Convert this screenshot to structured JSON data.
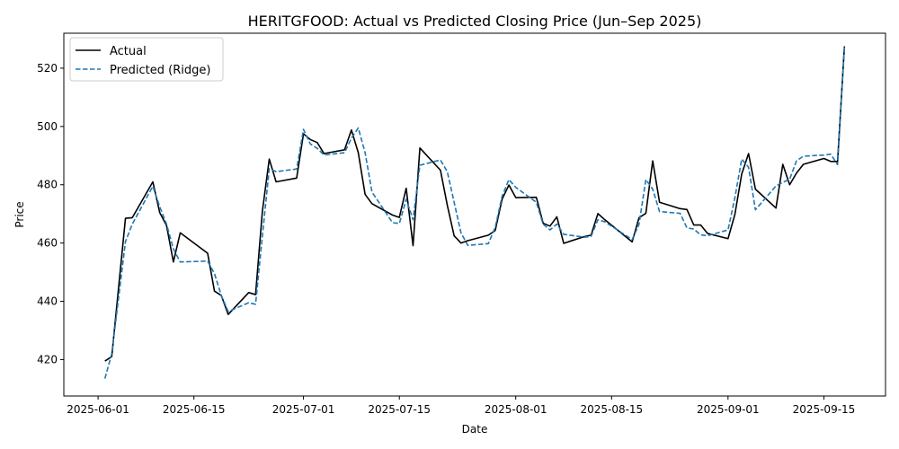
{
  "chart_data": {
    "type": "line",
    "title": "HERITGFOOD: Actual vs Predicted Closing Price (Jun–Sep 2025)",
    "xlabel": "Date",
    "ylabel": "Price",
    "xlim": [
      "2025-05-27",
      "2025-09-24"
    ],
    "ylim": [
      407.5,
      532
    ],
    "x_ticks": [
      "2025-06-01",
      "2025-06-15",
      "2025-07-01",
      "2025-07-15",
      "2025-08-01",
      "2025-08-15",
      "2025-09-01",
      "2025-09-15"
    ],
    "y_ticks": [
      420,
      440,
      460,
      480,
      500,
      520
    ],
    "grid": false,
    "legend_position": "top-left",
    "colors": {
      "actual": "#000000",
      "predicted": "#1f77b4"
    },
    "x": [
      "2025-06-02",
      "2025-06-03",
      "2025-06-05",
      "2025-06-06",
      "2025-06-09",
      "2025-06-10",
      "2025-06-11",
      "2025-06-12",
      "2025-06-13",
      "2025-06-17",
      "2025-06-18",
      "2025-06-19",
      "2025-06-20",
      "2025-06-23",
      "2025-06-24",
      "2025-06-25",
      "2025-06-26",
      "2025-06-27",
      "2025-06-30",
      "2025-07-01",
      "2025-07-02",
      "2025-07-03",
      "2025-07-04",
      "2025-07-07",
      "2025-07-08",
      "2025-07-09",
      "2025-07-10",
      "2025-07-11",
      "2025-07-14",
      "2025-07-15",
      "2025-07-16",
      "2025-07-17",
      "2025-07-18",
      "2025-07-21",
      "2025-07-22",
      "2025-07-23",
      "2025-07-24",
      "2025-07-25",
      "2025-07-28",
      "2025-07-29",
      "2025-07-30",
      "2025-07-31",
      "2025-08-01",
      "2025-08-04",
      "2025-08-05",
      "2025-08-06",
      "2025-08-07",
      "2025-08-08",
      "2025-08-11",
      "2025-08-12",
      "2025-08-13",
      "2025-08-14",
      "2025-08-18",
      "2025-08-19",
      "2025-08-20",
      "2025-08-21",
      "2025-08-22",
      "2025-08-25",
      "2025-08-26",
      "2025-08-27",
      "2025-08-28",
      "2025-08-29",
      "2025-09-01",
      "2025-09-02",
      "2025-09-03",
      "2025-09-04",
      "2025-09-05",
      "2025-09-08",
      "2025-09-09",
      "2025-09-10",
      "2025-09-11",
      "2025-09-12",
      "2025-09-15",
      "2025-09-16",
      "2025-09-17",
      "2025-09-18"
    ],
    "series": [
      {
        "name": "Actual",
        "style": "solid",
        "values": [
          419.5,
          421,
          468.5,
          468.7,
          481,
          470.5,
          466,
          453.5,
          463.5,
          456.5,
          443.5,
          442,
          435.5,
          443,
          442.3,
          471,
          488.8,
          481,
          482.3,
          497.5,
          495.5,
          494.5,
          490.7,
          492,
          498.8,
          491,
          476.7,
          473.5,
          469.6,
          468.8,
          478.8,
          459.1,
          492.6,
          485,
          473,
          462.5,
          460,
          460.8,
          462.7,
          464.3,
          475,
          479.9,
          475.6,
          475.7,
          466.8,
          465.8,
          469,
          459.9,
          462.2,
          462.7,
          470.1,
          468,
          460.4,
          468.7,
          470.2,
          488.2,
          474,
          471.8,
          471.5,
          466.2,
          466.2,
          463.3,
          461.5,
          469.8,
          483.7,
          490.7,
          478.5,
          472,
          487,
          480,
          484,
          487,
          489,
          488,
          488,
          527.5
        ]
      },
      {
        "name": "Predicted (Ridge)",
        "style": "dashed",
        "values": [
          413.5,
          422,
          460.5,
          466.5,
          479.5,
          472.5,
          466.5,
          458,
          453.5,
          453.8,
          449.5,
          442,
          436.5,
          439.5,
          439,
          462.5,
          485.5,
          484.5,
          485.4,
          499,
          494,
          492.5,
          490.2,
          491,
          496,
          499.5,
          491,
          477.5,
          467,
          466.7,
          475,
          468,
          486.7,
          488.5,
          484.5,
          474,
          463.5,
          459.2,
          459.8,
          465.4,
          476,
          481.8,
          479.1,
          474,
          466.5,
          464.5,
          466.5,
          463,
          462,
          462.3,
          468,
          467.3,
          461.2,
          466.4,
          481.8,
          478.5,
          470.8,
          470.2,
          465.2,
          464.8,
          462.8,
          462.5,
          464.5,
          475.5,
          488.8,
          486,
          471.4,
          479.6,
          480.8,
          481.9,
          488.2,
          489.8,
          490.2,
          490.5,
          486.9,
          527.2
        ]
      }
    ]
  }
}
